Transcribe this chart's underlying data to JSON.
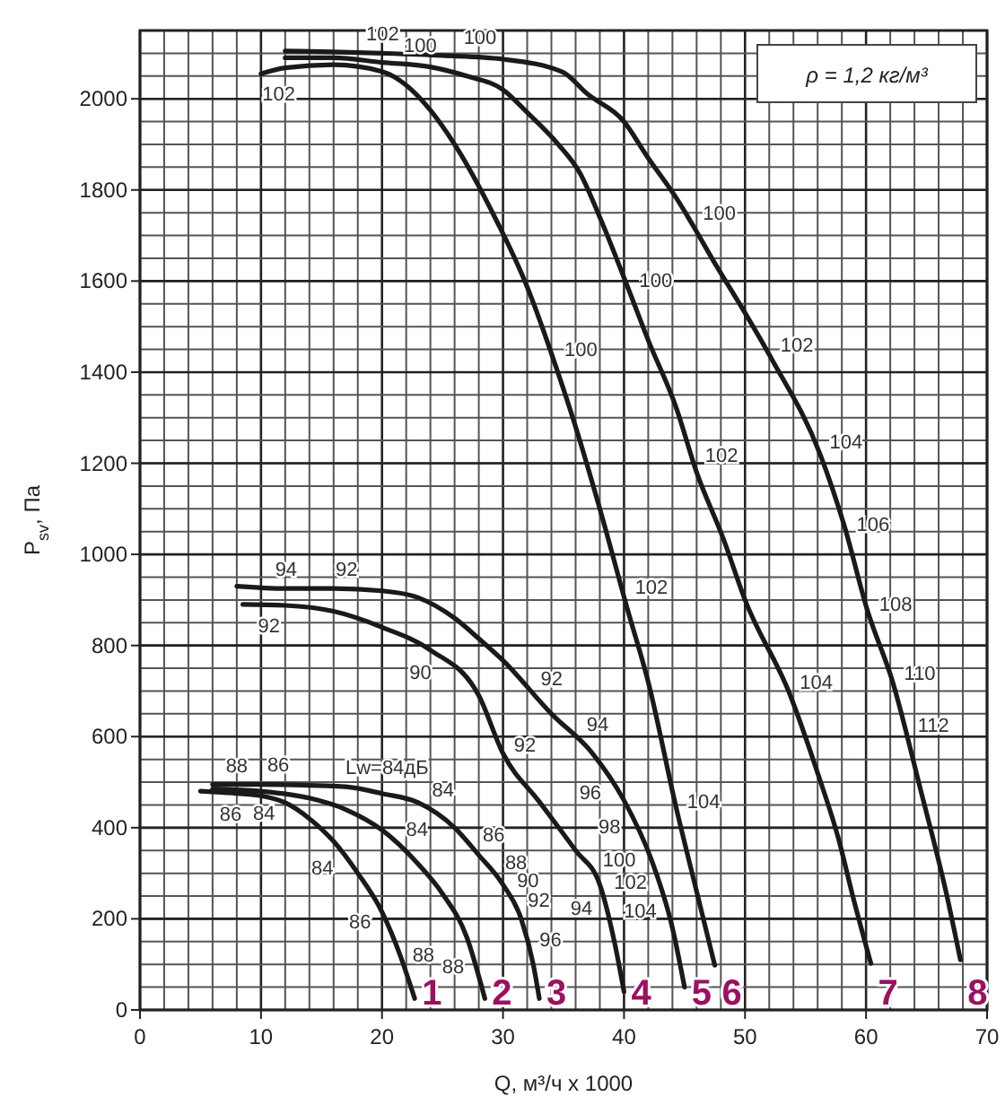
{
  "chart_data": {
    "type": "line",
    "xlabel": "Q, м³/ч x 1000",
    "ylabel": "P$_{sv}$, Па",
    "xlim": [
      0,
      70
    ],
    "xticks": [
      0,
      10,
      20,
      30,
      40,
      50,
      60,
      70
    ],
    "ylim": [
      0,
      2150
    ],
    "yticks": [
      0,
      200,
      400,
      600,
      800,
      1000,
      1200,
      1400,
      1600,
      1800,
      2000
    ],
    "grid": true,
    "marker": "none",
    "line_style": "solid",
    "series": [
      {
        "name": "1",
        "color": "#1a1a1a",
        "x": [
          5,
          8,
          10,
          12,
          14,
          16,
          18,
          20,
          21.5,
          22.7
        ],
        "values": [
          480,
          475,
          470,
          455,
          420,
          370,
          300,
          215,
          120,
          25
        ]
      },
      {
        "name": "2",
        "color": "#1a1a1a",
        "x": [
          6,
          10,
          14,
          17,
          20,
          23,
          25,
          27,
          28.5
        ],
        "values": [
          485,
          480,
          465,
          440,
          395,
          320,
          255,
          160,
          25
        ]
      },
      {
        "name": "3",
        "color": "#1a1a1a",
        "x": [
          6,
          10,
          14,
          17,
          20,
          23,
          26,
          28,
          30,
          31.5,
          32.5,
          33
        ],
        "values": [
          495,
          495,
          493,
          490,
          475,
          455,
          400,
          340,
          275,
          200,
          100,
          25
        ]
      },
      {
        "name": "4",
        "color": "#1a1a1a",
        "x": [
          8.5,
          12,
          16,
          20,
          24,
          28,
          30,
          33,
          36,
          38,
          39.2,
          40
        ],
        "values": [
          890,
          888,
          875,
          840,
          790,
          690,
          563,
          457,
          350,
          275,
          150,
          40
        ]
      },
      {
        "name": "5",
        "color": "#1a1a1a",
        "x": [
          8,
          12,
          16,
          20,
          23,
          26,
          28,
          30,
          34,
          37.4,
          40,
          42.3,
          44,
          45
        ],
        "values": [
          930,
          925,
          925,
          920,
          905,
          860,
          815,
          767,
          650,
          563,
          460,
          327,
          180,
          50
        ]
      },
      {
        "name": "6",
        "color": "#1a1a1a",
        "x": [
          10,
          12,
          16,
          20,
          22,
          24,
          26,
          29,
          32,
          34.4,
          36,
          38,
          40.3,
          42,
          44.3,
          46,
          47.5
        ],
        "values": [
          2055,
          2068,
          2075,
          2060,
          2030,
          1975,
          1900,
          1757,
          1587,
          1410,
          1280,
          1100,
          878,
          720,
          445,
          260,
          98
        ]
      },
      {
        "name": "7",
        "color": "#1a1a1a",
        "x": [
          12,
          16,
          20,
          24,
          27,
          30,
          32,
          34.5,
          36.4,
          38,
          40.3,
          42,
          44.3,
          46,
          48.2,
          50,
          53.7,
          56,
          57.7,
          59,
          60.4
        ],
        "values": [
          2090,
          2090,
          2080,
          2070,
          2050,
          2020,
          1970,
          1902,
          1835,
          1740,
          1587,
          1470,
          1323,
          1180,
          1035,
          900,
          693,
          520,
          378,
          240,
          102
        ]
      },
      {
        "name": "8",
        "color": "#1a1a1a",
        "x": [
          12,
          16,
          20,
          25,
          30,
          34.9,
          37,
          39.9,
          42,
          44.3,
          47.8,
          50,
          52.2,
          56.2,
          58.2,
          60.1,
          62.2,
          64.5,
          66.6,
          67.8
        ],
        "values": [
          2105,
          2103,
          2100,
          2095,
          2087,
          2059,
          2010,
          1953,
          1870,
          1783,
          1626,
          1530,
          1429,
          1220,
          1063,
          878,
          720,
          484,
          260,
          110
        ]
      }
    ],
    "annotations": [
      "ρ = 1,2 кг/м³",
      {
        "text": "102",
        "x": 20,
        "y": 2100
      },
      {
        "text": "100",
        "x": 28,
        "y": 2090
      },
      {
        "text": "102",
        "x": 11,
        "y": 2062
      },
      {
        "text": "100",
        "x": 23,
        "y": 2072
      },
      {
        "text": "100",
        "x": 45.8,
        "y": 1717
      },
      {
        "text": "100",
        "x": 40.4,
        "y": 1580
      },
      {
        "text": "100",
        "x": 34.2,
        "y": 1430
      },
      {
        "text": "102",
        "x": 52.2,
        "y": 1429
      },
      {
        "text": "102",
        "x": 45.8,
        "y": 1200
      },
      {
        "text": "104",
        "x": 56.2,
        "y": 1220
      },
      {
        "text": "106",
        "x": 58.3,
        "y": 1050
      },
      {
        "text": "102",
        "x": 40,
        "y": 913
      },
      {
        "text": "108",
        "x": 60.2,
        "y": 870
      },
      {
        "text": "104",
        "x": 53.7,
        "y": 693
      },
      {
        "text": "110",
        "x": 62.2,
        "y": 720
      },
      {
        "text": "112",
        "x": 63.3,
        "y": 610
      },
      {
        "text": "104",
        "x": 44.3,
        "y": 445
      },
      {
        "text": "94",
        "x": 12,
        "y": 925
      },
      {
        "text": "92",
        "x": 17,
        "y": 924
      },
      {
        "text": "92",
        "x": 10.7,
        "y": 889
      },
      {
        "text": "90",
        "x": 24,
        "y": 790
      },
      {
        "text": "92",
        "x": 32.5,
        "y": 693
      },
      {
        "text": "92",
        "x": 30,
        "y": 563
      },
      {
        "text": "94",
        "x": 36.4,
        "y": 590
      },
      {
        "text": "96",
        "x": 38.9,
        "y": 508
      },
      {
        "text": "98",
        "x": 40.6,
        "y": 425
      },
      {
        "text": "100",
        "x": 41.8,
        "y": 358
      },
      {
        "text": "102",
        "x": 42.8,
        "y": 299
      },
      {
        "text": "104",
        "x": 43.6,
        "y": 236
      },
      {
        "text": "94",
        "x": 38.3,
        "y": 236
      },
      {
        "text": "88",
        "x": 8,
        "y": 495
      },
      {
        "text": "86",
        "x": 11.4,
        "y": 495
      },
      {
        "text": "Lw=84дБ",
        "x": 20,
        "y": 475
      },
      {
        "text": "86",
        "x": 7.6,
        "y": 476
      },
      {
        "text": "84",
        "x": 10.5,
        "y": 479
      },
      {
        "text": "84",
        "x": 23.9,
        "y": 440
      },
      {
        "text": "84",
        "x": 16.7,
        "y": 346
      },
      {
        "text": "84",
        "x": 21.5,
        "y": 358
      },
      {
        "text": "86",
        "x": 27.7,
        "y": 350
      },
      {
        "text": "88",
        "x": 29.5,
        "y": 291
      },
      {
        "text": "90",
        "x": 30.3,
        "y": 260
      },
      {
        "text": "92",
        "x": 31.2,
        "y": 217
      },
      {
        "text": "96",
        "x": 32.1,
        "y": 142
      },
      {
        "text": "86",
        "x": 19.9,
        "y": 224
      },
      {
        "text": "88",
        "x": 21.6,
        "y": 106
      },
      {
        "text": "88",
        "x": 27.7,
        "y": 110
      }
    ]
  }
}
